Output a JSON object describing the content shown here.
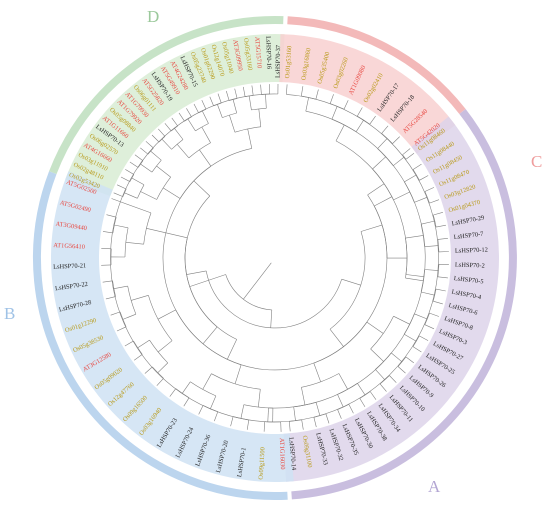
{
  "figure": {
    "clades": [
      {
        "id": "A",
        "letter": "A",
        "arc_color": "#c9bedf",
        "band_color": "#ddd4ea",
        "start_deg": 52,
        "end_deg": 176
      },
      {
        "id": "B",
        "letter": "B",
        "arc_color": "#bcd5ee",
        "band_color": "#cfe2f3",
        "start_deg": 177,
        "end_deg": 291
      },
      {
        "id": "C",
        "letter": "C",
        "arc_color": "#f3b9b9",
        "band_color": "#f8d0d0",
        "start_deg": 52,
        "end_deg": 4
      },
      {
        "id": "D",
        "letter": "D",
        "arc_color": "#c7e3c7",
        "band_color": "#d8ecd3",
        "start_deg": 292,
        "end_deg": 3
      }
    ],
    "species_colors": {
      "Ls": "#222222",
      "At": "#e8463f",
      "Os": "#b89a18"
    },
    "clade_D_labels": [
      "Os02g53420",
      "Os02g48110",
      "Os03g11910",
      "AT4G16660",
      "Os06g02570",
      "LsHSP70-13",
      "AT1G11660",
      "Os05g08840",
      "AT1G79920",
      "AT1G79930",
      "Os06g01111",
      "AT5G25820",
      "LsHSP70-19",
      "AT5G49910",
      "AT4G24280",
      "LsHSP70-15",
      "Os05g23740",
      "Os01g62290",
      "Os12g14070",
      "Os05g11040",
      "AT3G09950",
      "Os05g33160",
      "AT5G15710",
      "LsHSP70-16",
      "LsHSP70-37"
    ],
    "clade_C_labels": [
      "Os01g53160",
      "Os03g16860",
      "Os05g35400",
      "Os03g02260",
      "AT1G09080",
      "Os02g02410",
      "LsHSP70-17",
      "LsHSP70-18",
      "AT5G28540",
      "AT5G42020"
    ],
    "clade_A_labels": [
      "Os11g08460",
      "Os11g08440",
      "Os11g08450",
      "Os11g08470",
      "Os03g12820",
      "Os01g04370",
      "LsHSP70-29",
      "LsHSP70-7",
      "LsHSP70-12",
      "LsHSP70-2",
      "LsHSP70-5",
      "LsHSP70-4",
      "LsHSP70-6",
      "LsHSP70-8",
      "LsHSP70-3",
      "LsHSP70-27",
      "LsHSP70-25",
      "LsHSP70-26",
      "LsHSP70-9",
      "LsHSP70-10",
      "LsHSP70-11",
      "LsHSP70-34",
      "LsHSP70-38",
      "LsHSP70-30",
      "LsHSP70-35",
      "LsHSP70-32",
      "LsHSP70-33",
      "Os09g31100",
      "LsHSP70-14"
    ],
    "clade_B_labels": [
      "AT1G16030",
      "Os09g11500",
      "LsHSP70-1",
      "LsHSP70-20",
      "LsHSP70-36",
      "LsHSP70-24",
      "LsHSP70-23",
      "Os03g16940",
      "Os09g16500",
      "Os12g47760",
      "Os05g09020",
      "AT3G12580",
      "Os05g38530",
      "Os01g12290",
      "LsHSP70-28",
      "LsHSP70-22",
      "LsHSP70-21",
      "AT1G56410",
      "AT3G09440",
      "AT5G02490",
      "AT5G02500"
    ]
  }
}
